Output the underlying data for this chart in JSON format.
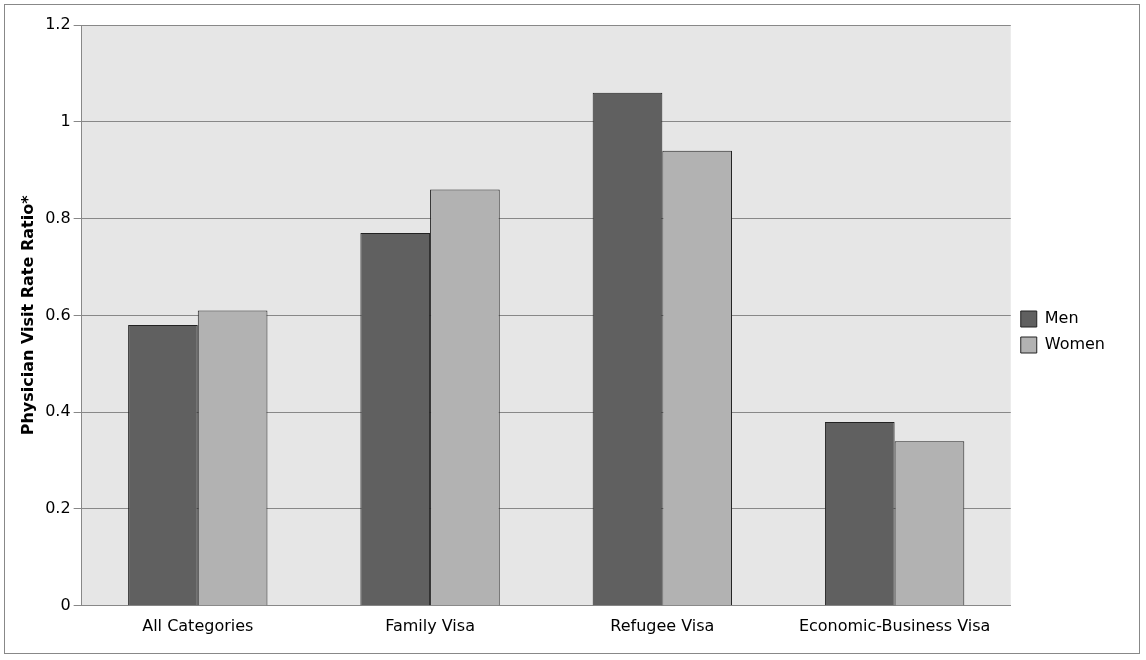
{
  "chart_data": {
    "type": "bar",
    "ylabel": "Physician Visit Rate Ratio*",
    "categories": [
      "All Categories",
      "Family Visa",
      "Refugee Visa",
      "Economic-Business Visa"
    ],
    "series": [
      {
        "name": "Men",
        "color": "#606060",
        "values": [
          0.58,
          0.77,
          1.06,
          0.38
        ]
      },
      {
        "name": "Women",
        "color": "#b2b2b2",
        "values": [
          0.61,
          0.86,
          0.94,
          0.34
        ]
      }
    ],
    "ylim": [
      0,
      1.2
    ],
    "yticks": [
      0,
      0.2,
      0.4,
      0.6,
      0.8,
      1,
      1.2
    ],
    "grid": "y",
    "legend": "right"
  }
}
